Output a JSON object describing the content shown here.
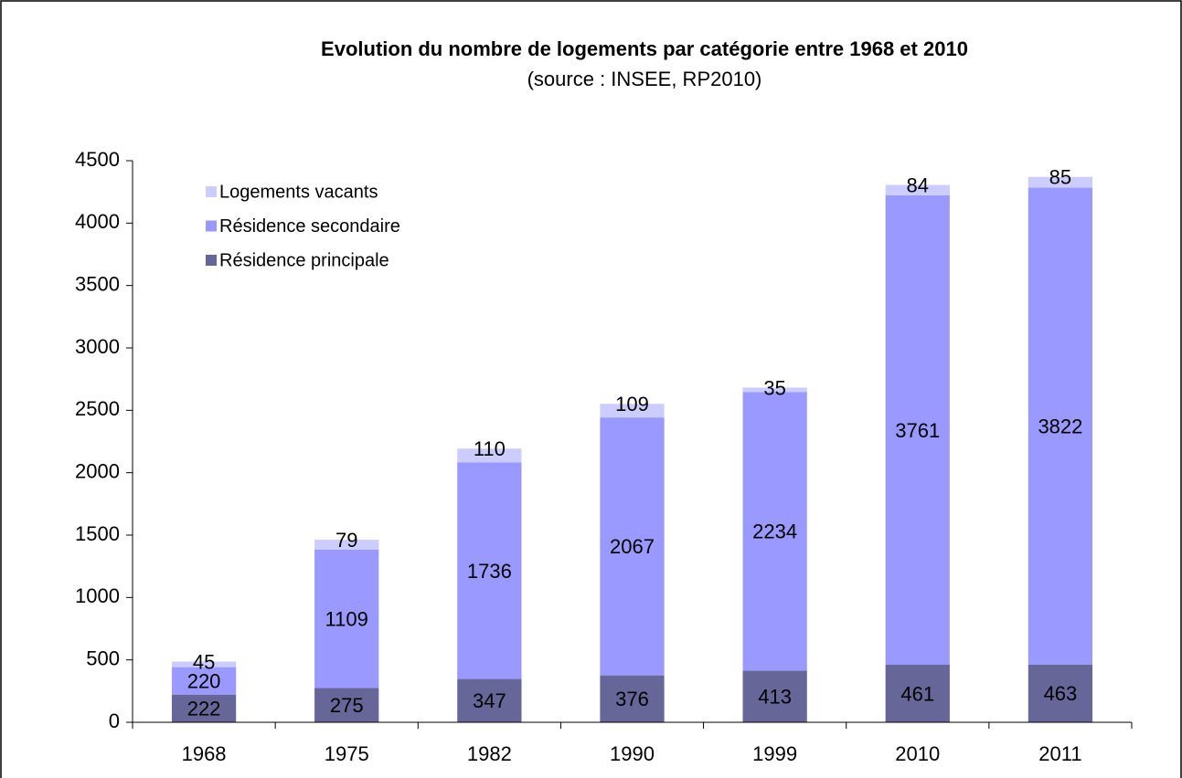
{
  "chart_data": {
    "type": "stacked_bar",
    "title": "Evolution du nombre de logements par catégorie entre 1968 et 2010",
    "subtitle": "(source : INSEE, RP2010)",
    "categories": [
      "1968",
      "1975",
      "1982",
      "1990",
      "1999",
      "2010",
      "2011"
    ],
    "series": [
      {
        "name": "Résidence principale",
        "color": "#666699",
        "values": [
          222,
          275,
          347,
          376,
          413,
          461,
          463
        ]
      },
      {
        "name": "Résidence secondaire",
        "color": "#9999ff",
        "values": [
          220,
          1109,
          1736,
          2067,
          2234,
          3761,
          3822
        ]
      },
      {
        "name": "Logements vacants",
        "color": "#ccccff",
        "values": [
          45,
          79,
          110,
          109,
          35,
          84,
          85
        ]
      }
    ],
    "ylim": [
      0,
      4500
    ],
    "yticks": [
      0,
      500,
      1000,
      1500,
      2000,
      2500,
      3000,
      3500,
      4000,
      4500
    ],
    "grid": false,
    "legend": "top-left"
  }
}
